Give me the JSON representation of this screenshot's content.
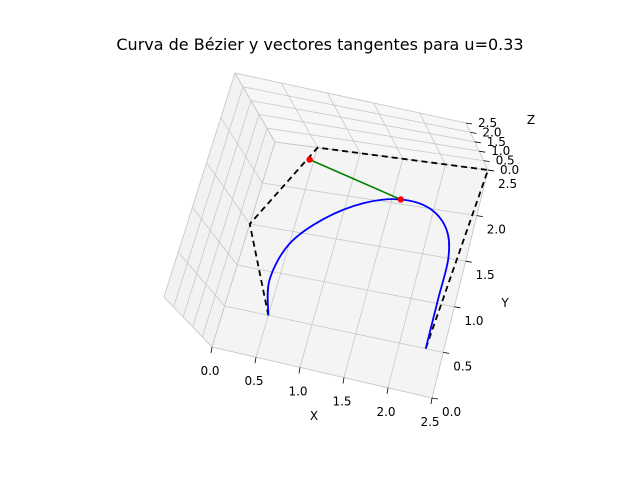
{
  "chart_data": {
    "type": "line",
    "projection": "3d",
    "title": "Curva de Bézier y vectores tangentes para u=0.33",
    "xlabel": "X",
    "ylabel": "Y",
    "zlabel": "Z",
    "xlim": [
      0,
      2.5
    ],
    "ylim": [
      0,
      2.5
    ],
    "zlim": [
      0,
      2.5
    ],
    "x_ticks": [
      "0.0",
      "0.5",
      "1.0",
      "1.5",
      "2.0",
      "2.5"
    ],
    "y_ticks": [
      "0.0",
      "0.5",
      "1.0",
      "1.5",
      "2.0",
      "2.5"
    ],
    "z_ticks": [
      "0.0",
      "0.5",
      "1.0",
      "1.5",
      "2.0",
      "2.5"
    ],
    "grid": true,
    "u": 0.33,
    "series": [
      {
        "role": "control-polygon",
        "color": "#000000",
        "style": "dashed",
        "x": [
          0.5,
          0.0,
          0.5,
          2.5,
          2.3
        ],
        "y": [
          0.5,
          1.5,
          2.5,
          2.5,
          0.5
        ],
        "z": [
          0,
          0,
          0,
          0,
          0
        ]
      },
      {
        "role": "bezier-curve",
        "color": "#0000ff",
        "x": [
          0.5,
          0.4,
          0.5,
          0.8,
          1.2,
          1.6,
          1.95,
          2.2,
          2.3,
          2.3,
          2.3
        ],
        "y": [
          0.5,
          0.9,
          1.35,
          1.7,
          1.95,
          2.05,
          2.0,
          1.8,
          1.5,
          1.05,
          0.5
        ],
        "z": [
          0,
          0,
          0,
          0,
          0,
          0,
          0,
          0,
          0,
          0,
          0
        ]
      },
      {
        "role": "tangent-vector",
        "color": "#008000",
        "x": [
          0.45,
          1.6
        ],
        "y": [
          2.35,
          2.05
        ],
        "z": [
          0,
          0
        ]
      },
      {
        "role": "points",
        "color": "#ff0000",
        "type": "scatter",
        "x": [
          0.45,
          1.6
        ],
        "y": [
          2.35,
          2.05
        ],
        "z": [
          0,
          0
        ]
      }
    ]
  }
}
